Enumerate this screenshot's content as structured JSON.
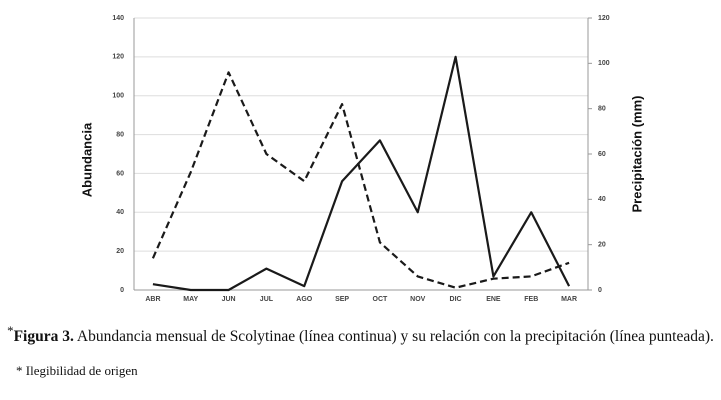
{
  "chart_data": {
    "type": "line",
    "y_label": "Abundancia",
    "y2_label": "Precipitación (mm)",
    "categories": [
      "ABR",
      "MAY",
      "JUN",
      "JUL",
      "AGO",
      "SEP",
      "OCT",
      "NOV",
      "DIC",
      "ENE",
      "FEB",
      "MAR"
    ],
    "series": [
      {
        "color": "#1a1a1a",
        "linestyle": "solid",
        "values": [
          3,
          0,
          0,
          11,
          2,
          56,
          77,
          40,
          120,
          7,
          40,
          2
        ]
      },
      {
        "color": "#1a1a1a",
        "linestyle": "dashed",
        "axis": "y2",
        "values": [
          14,
          52,
          96,
          60,
          48,
          82,
          21,
          6,
          1,
          5,
          6,
          12
        ]
      }
    ],
    "ylim": [
      0,
      140
    ],
    "yticks": [
      0,
      20,
      40,
      60,
      80,
      100,
      120,
      140
    ],
    "y2lim": [
      0,
      120
    ],
    "y2ticks": [
      0,
      20,
      40,
      60,
      80,
      100,
      120
    ],
    "grid": true
  },
  "caption": {
    "marker": "*",
    "label": "Figura 3.",
    "text": "Abundancia mensual de Scolytinae (línea continua) y su relación con la precipitación (línea punteada)."
  },
  "note": "* Ilegibilidad de origen"
}
